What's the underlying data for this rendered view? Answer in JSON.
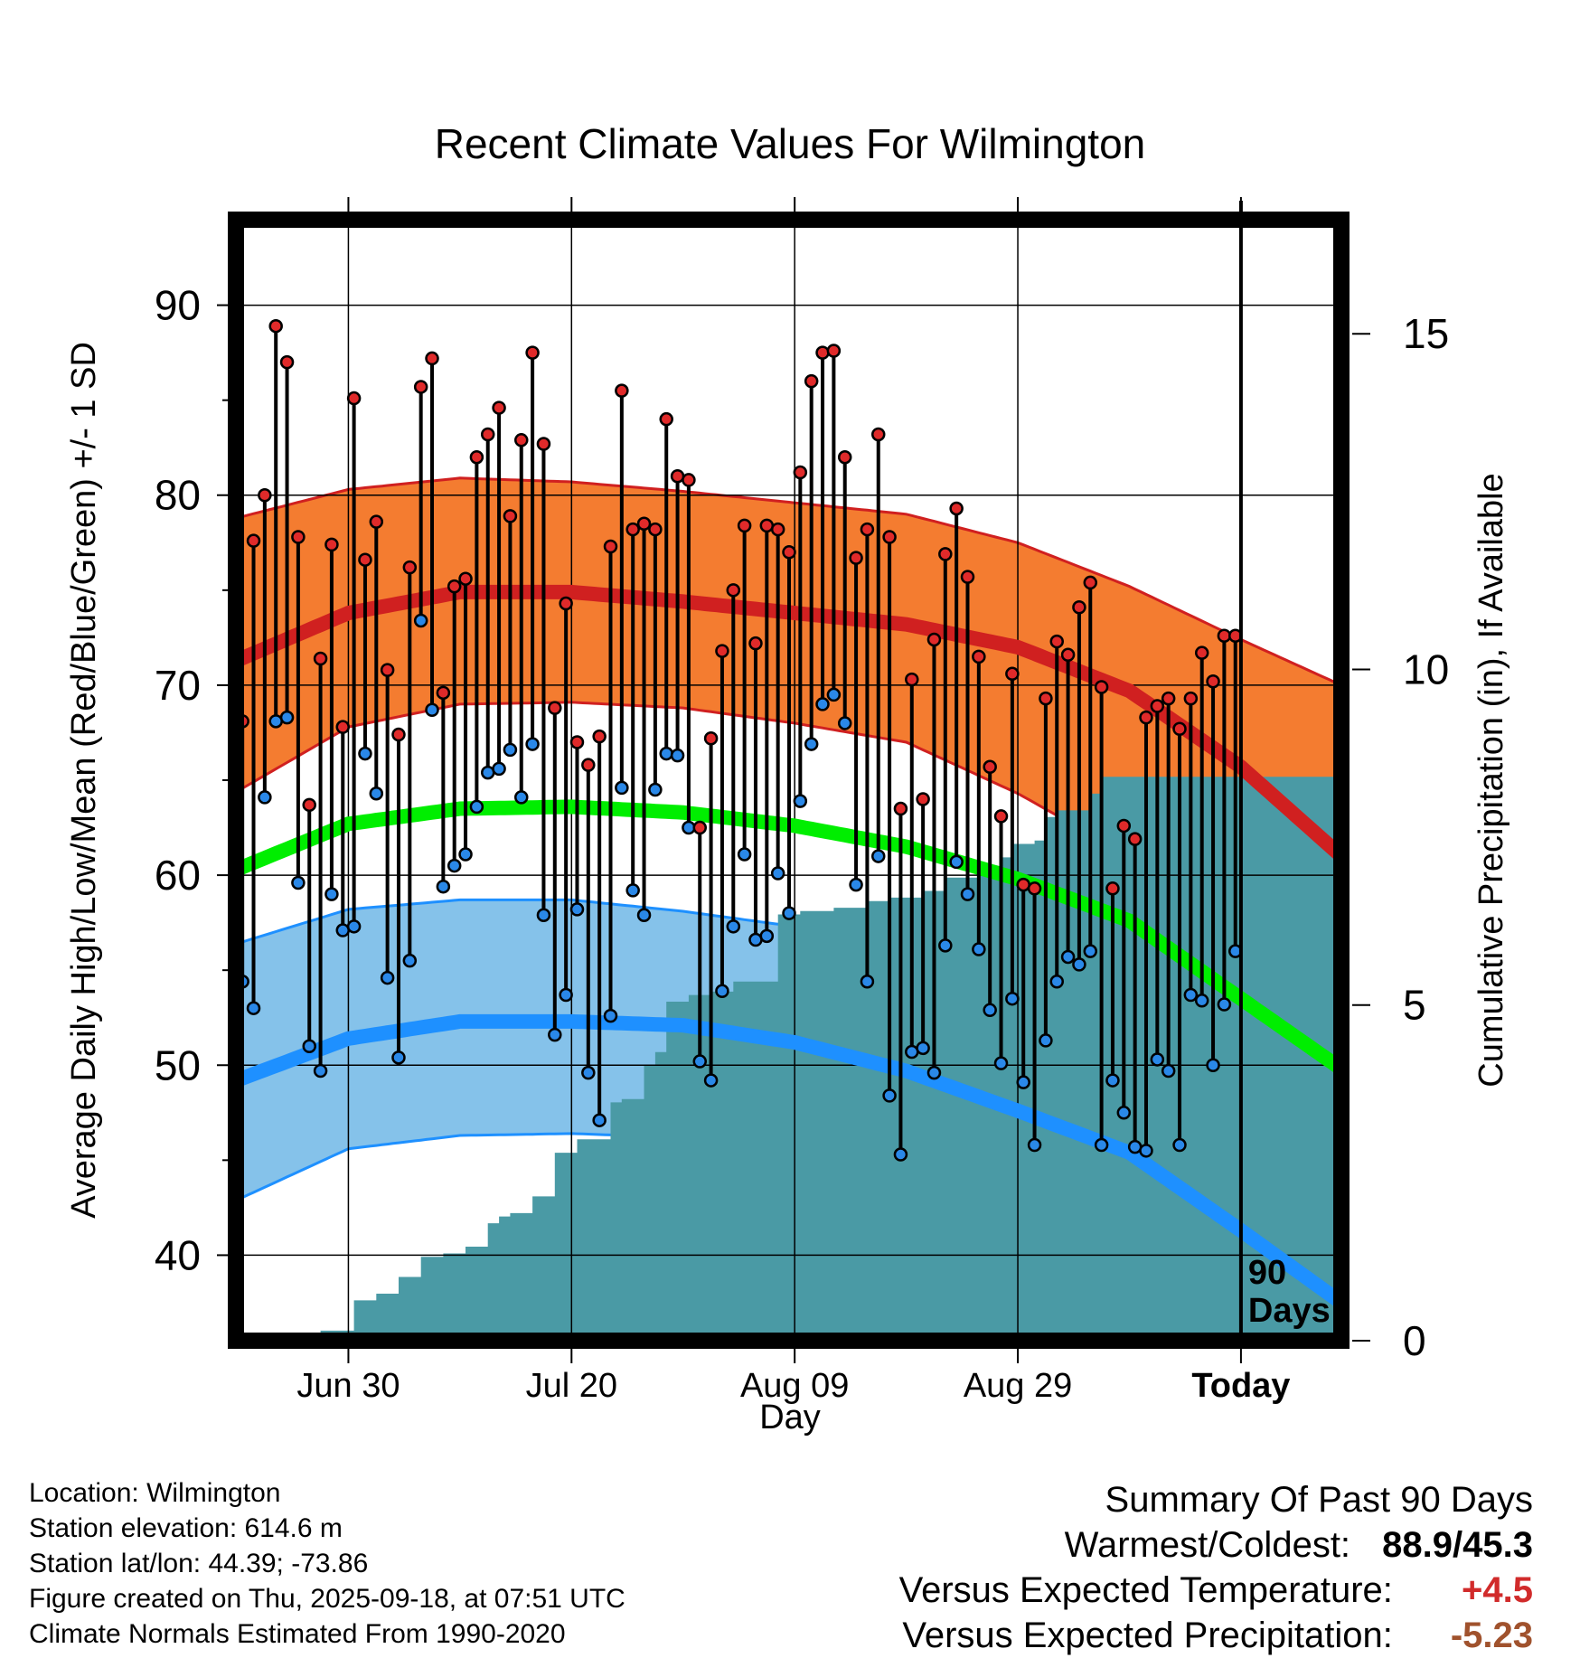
{
  "chart_data": {
    "type": "line",
    "title": "Recent Climate Values For Wilmington",
    "xlabel": "Day",
    "ylabel": "Average Daily High/Low/Mean (Red/Blue/Green) +/- 1 SD",
    "y2label": "Cumulative Precipitation (in), If Available",
    "ylim": [
      35.5,
      94.5
    ],
    "y_ticks": [
      "40",
      "50",
      "60",
      "70",
      "80",
      "90"
    ],
    "y2lim": [
      0,
      16.7
    ],
    "y2_ticks": [
      "0",
      "5",
      "10",
      "15"
    ],
    "x_range_days": [
      -90,
      9
    ],
    "x_ticks": [
      {
        "label": "Jun 30",
        "day": -80
      },
      {
        "label": "Jul 20",
        "day": -60
      },
      {
        "label": "Aug 09",
        "day": -40
      },
      {
        "label": "Aug 29",
        "day": -20
      },
      {
        "label": "Today",
        "day": 0
      }
    ],
    "today_marker": {
      "day": 0,
      "label_line1": "90",
      "label_line2": "Days"
    },
    "colors": {
      "high_band": "#f47c30",
      "high_line": "#d02020",
      "low_band": "#85c2ea",
      "low_line": "#1e90ff",
      "mean_line": "#00ee00",
      "precip": "#4a9aa5",
      "high_marker": "#e02a2a",
      "low_marker": "#2a88e8"
    },
    "normals": {
      "days": [
        -90,
        -80,
        -70,
        -60,
        -50,
        -40,
        -30,
        -20,
        -10,
        0,
        9
      ],
      "high_mean": [
        71.3,
        73.8,
        74.9,
        74.9,
        74.4,
        73.8,
        73.2,
        72.0,
        69.7,
        65.7,
        61.0
      ],
      "high_upper": [
        78.8,
        80.3,
        80.9,
        80.7,
        80.2,
        79.6,
        79.0,
        77.5,
        75.2,
        72.4,
        70.0
      ],
      "high_lower": [
        64.4,
        67.8,
        69.0,
        69.1,
        68.8,
        68.0,
        67.0,
        64.3,
        61.0,
        58.0,
        53.0
      ],
      "low_mean": [
        49.2,
        51.4,
        52.3,
        52.3,
        52.1,
        51.2,
        49.7,
        47.6,
        45.4,
        41.3,
        37.5
      ],
      "low_upper": [
        56.4,
        58.2,
        58.7,
        58.7,
        58.1,
        57.3,
        56.5,
        54.8,
        52.5,
        49.8,
        47.5
      ],
      "low_lower": [
        42.9,
        45.6,
        46.3,
        46.4,
        46.2,
        45.2,
        43.6,
        41.5,
        39.0,
        35.7,
        33.0
      ],
      "mean": [
        60.3,
        62.7,
        63.5,
        63.6,
        63.3,
        62.6,
        61.5,
        59.8,
        57.6,
        53.5,
        49.8
      ]
    },
    "series": [
      {
        "name": "High",
        "values": [
          68.1,
          77.6,
          80.0,
          88.9,
          87.0,
          77.8,
          63.7,
          71.4,
          77.4,
          67.8,
          85.1,
          76.6,
          78.6,
          70.8,
          67.4,
          76.2,
          85.7,
          87.2,
          69.6,
          75.2,
          75.6,
          82.0,
          83.2,
          84.6,
          78.9,
          82.9,
          87.5,
          82.7,
          68.8,
          74.3,
          67.0,
          65.8,
          67.3,
          77.3,
          85.5,
          78.2,
          78.5,
          78.2,
          84.0,
          81.0,
          80.8,
          62.5,
          67.2,
          71.8,
          75.0,
          78.4,
          72.2,
          78.4,
          78.2,
          77.0,
          81.2,
          86.0,
          87.5,
          87.6,
          82.0,
          76.7,
          78.2,
          83.2,
          77.8,
          63.5,
          70.3,
          64.0,
          72.4,
          76.9,
          79.3,
          75.7,
          71.5,
          65.7,
          63.1,
          70.6,
          59.5,
          59.3,
          69.3,
          72.3,
          71.6,
          74.1,
          75.4,
          69.9,
          59.3,
          62.6,
          61.9,
          68.3,
          68.9,
          69.3,
          67.7,
          69.3,
          71.7,
          70.2,
          72.6,
          72.6
        ]
      },
      {
        "name": "Low",
        "values": [
          54.4,
          53.0,
          64.1,
          68.1,
          68.3,
          59.6,
          51.0,
          49.7,
          59.0,
          57.1,
          57.3,
          66.4,
          64.3,
          54.6,
          50.4,
          55.5,
          73.4,
          68.7,
          59.4,
          60.5,
          61.1,
          63.6,
          65.4,
          65.6,
          66.6,
          64.1,
          66.9,
          57.9,
          51.6,
          53.7,
          58.2,
          49.6,
          47.1,
          52.6,
          64.6,
          59.2,
          57.9,
          64.5,
          66.4,
          66.3,
          62.5,
          50.2,
          49.2,
          53.9,
          57.3,
          61.1,
          56.6,
          56.8,
          60.1,
          58.0,
          63.9,
          66.9,
          69.0,
          69.5,
          68.0,
          59.5,
          54.4,
          61.0,
          48.4,
          45.3,
          50.7,
          50.9,
          49.6,
          56.3,
          60.7,
          59.0,
          56.1,
          52.9,
          50.1,
          53.5,
          49.1,
          45.8,
          51.3,
          54.4,
          55.7,
          55.3,
          56.0,
          45.8,
          49.2,
          47.5,
          45.7,
          45.5,
          50.3,
          49.7,
          45.8,
          53.7,
          53.4,
          50.0,
          53.2,
          56.0
        ]
      },
      {
        "name": "Cumulative Precipitation",
        "x": [
          -88.5,
          -85.5,
          -82.5,
          -79.5,
          -77.5,
          -75.5,
          -73.5,
          -71.5,
          -69.5,
          -67.5,
          -66.5,
          -65.5,
          -63.5,
          -61.5,
          -59.5,
          -56.5,
          -55.5,
          -53.5,
          -52.5,
          -51.5,
          -49.5,
          -47.5,
          -45.5,
          -41.5,
          -39.5,
          -36.5,
          -33.5,
          -31.5,
          -28.5,
          -26.5,
          -23.5,
          -21.5,
          -20.5,
          -18.5,
          -17.5,
          -16.5,
          -13.5,
          -12.5,
          -6.5,
          -3.5,
          9
        ],
        "values": [
          0.05,
          0.1,
          0.15,
          0.6,
          0.7,
          0.95,
          1.25,
          1.3,
          1.4,
          1.75,
          1.85,
          1.9,
          2.15,
          2.8,
          3.0,
          3.55,
          3.6,
          4.1,
          4.3,
          5.05,
          5.15,
          5.2,
          5.35,
          6.35,
          6.4,
          6.45,
          6.55,
          6.6,
          6.7,
          6.9,
          7.0,
          7.2,
          7.4,
          7.45,
          7.8,
          7.9,
          8.15,
          8.4,
          8.4,
          8.4,
          8.4
        ]
      }
    ]
  },
  "info": {
    "location": "Location: Wilmington",
    "elevation": "Station elevation: 614.6 m",
    "latlon": "Station lat/lon: 44.39; -73.86",
    "created": "Figure created on Thu, 2025-09-18, at 07:51 UTC",
    "normals": "Climate Normals Estimated From 1990-2020"
  },
  "summary": {
    "heading": "Summary Of Past 90 Days",
    "warmest_label": "Warmest/Coldest:",
    "warmest_value": "88.9/45.3",
    "temp_label": "Versus Expected Temperature:",
    "temp_value": "+4.5",
    "temp_color": "#d12b2b",
    "precip_label": "Versus Expected Precipitation:",
    "precip_value": "-5.23",
    "precip_color": "#a0522d"
  }
}
